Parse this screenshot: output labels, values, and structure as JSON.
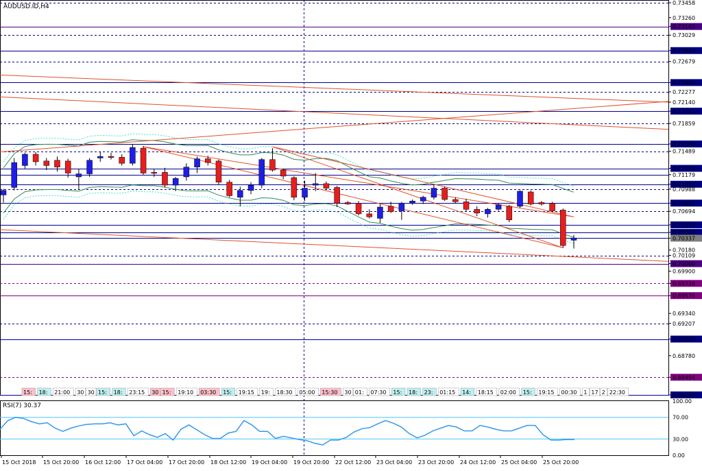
{
  "chart_data": {
    "type": "candlestick",
    "title": "AUDUSD.ID,H4",
    "ylim": [
      0.6826,
      0.73458
    ],
    "grid": false,
    "price_ticks": [
      "0.73458",
      "0.73260",
      "0.73143",
      "0.73029",
      "0.72824",
      "0.72679",
      "0.72400",
      "0.72277",
      "0.72140",
      "0.72021",
      "0.71859",
      "0.71586",
      "0.71489",
      "0.71263",
      "0.71179",
      "0.71052",
      "0.70988",
      "0.70802",
      "0.70694",
      "0.70514",
      "0.70414",
      "0.70337",
      "0.70180",
      "0.70109",
      "0.70000",
      "0.69900",
      "0.69738",
      "0.69576",
      "0.69340",
      "0.69207",
      "0.69000",
      "0.68780",
      "0.68494",
      "0.68260"
    ],
    "horizontal_levels": [
      {
        "price": 0.73458,
        "style": "dashed",
        "color": "#00008b"
      },
      {
        "price": 0.73143,
        "style": "solid",
        "color": "#4b0082"
      },
      {
        "price": 0.73029,
        "style": "dashed",
        "color": "#00008b"
      },
      {
        "price": 0.72824,
        "style": "solid",
        "color": "#00008b"
      },
      {
        "price": 0.72679,
        "style": "dashed",
        "color": "#00008b"
      },
      {
        "price": 0.724,
        "style": "solid",
        "color": "#00008b"
      },
      {
        "price": 0.72277,
        "style": "dashed",
        "color": "#00008b"
      },
      {
        "price": 0.72021,
        "style": "solid",
        "color": "#00008b"
      },
      {
        "price": 0.71859,
        "style": "dashed",
        "color": "#00008b"
      },
      {
        "price": 0.71586,
        "style": "solid",
        "color": "#00008b"
      },
      {
        "price": 0.71489,
        "style": "dashed",
        "color": "#00008b"
      },
      {
        "price": 0.71263,
        "style": "solid",
        "color": "#00008b"
      },
      {
        "price": 0.71179,
        "style": "solid",
        "color": "#00008b"
      },
      {
        "price": 0.71052,
        "style": "solid",
        "color": "#00008b"
      },
      {
        "price": 0.70988,
        "style": "dashed",
        "color": "#00008b"
      },
      {
        "price": 0.70802,
        "style": "solid",
        "color": "#00008b"
      },
      {
        "price": 0.70694,
        "style": "dashed",
        "color": "#00008b"
      },
      {
        "price": 0.70514,
        "style": "solid",
        "color": "#00008b"
      },
      {
        "price": 0.70414,
        "style": "solid",
        "color": "#00008b"
      },
      {
        "price": 0.70337,
        "style": "solid",
        "color": "#00008b"
      },
      {
        "price": 0.70109,
        "style": "dashed",
        "color": "#00008b"
      },
      {
        "price": 0.7,
        "style": "solid",
        "color": "#4b0082"
      },
      {
        "price": 0.69738,
        "style": "dashed",
        "color": "#800080"
      },
      {
        "price": 0.69576,
        "style": "solid",
        "color": "#800080"
      },
      {
        "price": 0.69207,
        "style": "dashed",
        "color": "#00008b"
      },
      {
        "price": 0.69,
        "style": "solid",
        "color": "#00008b"
      },
      {
        "price": 0.68494,
        "style": "dashed",
        "color": "#800080"
      },
      {
        "price": 0.6826,
        "style": "solid",
        "color": "#00008b"
      }
    ],
    "label_styles": {
      "0.73143": "#4b0082",
      "0.72824": "#000080",
      "0.72400": "#000080",
      "0.72021": "#000080",
      "0.71586": "#000080",
      "0.71263": "#000080",
      "0.71052": "#000080",
      "0.70802": "#000080",
      "0.70514": "#000080",
      "0.70414": "#000080",
      "0.70337": "#808080",
      "0.70000": "#4b0082",
      "0.69738": "#800080",
      "0.69576": "#800080",
      "0.69000": "#000080",
      "0.68494": "#800080",
      "0.68260": "#000080"
    },
    "candles": [
      {
        "o": 0.7091,
        "h": 0.7099,
        "l": 0.7081,
        "c": 0.7097
      },
      {
        "o": 0.7101,
        "h": 0.714,
        "l": 0.7097,
        "c": 0.7134
      },
      {
        "o": 0.713,
        "h": 0.7147,
        "l": 0.7126,
        "c": 0.7145
      },
      {
        "o": 0.7145,
        "h": 0.7148,
        "l": 0.713,
        "c": 0.7135
      },
      {
        "o": 0.7136,
        "h": 0.714,
        "l": 0.7124,
        "c": 0.713
      },
      {
        "o": 0.7137,
        "h": 0.7142,
        "l": 0.7122,
        "c": 0.7128
      },
      {
        "o": 0.7136,
        "h": 0.7139,
        "l": 0.7114,
        "c": 0.712
      },
      {
        "o": 0.7115,
        "h": 0.7126,
        "l": 0.7098,
        "c": 0.7119
      },
      {
        "o": 0.7119,
        "h": 0.714,
        "l": 0.7115,
        "c": 0.7137
      },
      {
        "o": 0.714,
        "h": 0.7148,
        "l": 0.7135,
        "c": 0.7142
      },
      {
        "o": 0.7142,
        "h": 0.7147,
        "l": 0.7138,
        "c": 0.7141
      },
      {
        "o": 0.7141,
        "h": 0.7145,
        "l": 0.713,
        "c": 0.7133
      },
      {
        "o": 0.7133,
        "h": 0.7158,
        "l": 0.713,
        "c": 0.7154
      },
      {
        "o": 0.7153,
        "h": 0.7156,
        "l": 0.7118,
        "c": 0.712
      },
      {
        "o": 0.7121,
        "h": 0.7125,
        "l": 0.7115,
        "c": 0.712
      },
      {
        "o": 0.7121,
        "h": 0.7127,
        "l": 0.7101,
        "c": 0.7104
      },
      {
        "o": 0.7104,
        "h": 0.7115,
        "l": 0.7096,
        "c": 0.7113
      },
      {
        "o": 0.7115,
        "h": 0.7133,
        "l": 0.711,
        "c": 0.7128
      },
      {
        "o": 0.7128,
        "h": 0.7142,
        "l": 0.712,
        "c": 0.7139
      },
      {
        "o": 0.7139,
        "h": 0.7143,
        "l": 0.713,
        "c": 0.7134
      },
      {
        "o": 0.7136,
        "h": 0.7138,
        "l": 0.7105,
        "c": 0.7108
      },
      {
        "o": 0.7108,
        "h": 0.7111,
        "l": 0.7088,
        "c": 0.709
      },
      {
        "o": 0.7088,
        "h": 0.7102,
        "l": 0.7076,
        "c": 0.7097
      },
      {
        "o": 0.7097,
        "h": 0.7108,
        "l": 0.7092,
        "c": 0.7104
      },
      {
        "o": 0.7104,
        "h": 0.714,
        "l": 0.71,
        "c": 0.7138
      },
      {
        "o": 0.7138,
        "h": 0.7153,
        "l": 0.7122,
        "c": 0.7124
      },
      {
        "o": 0.7124,
        "h": 0.7126,
        "l": 0.7112,
        "c": 0.7116
      },
      {
        "o": 0.7114,
        "h": 0.7116,
        "l": 0.7084,
        "c": 0.7088
      },
      {
        "o": 0.7088,
        "h": 0.711,
        "l": 0.7083,
        "c": 0.71
      },
      {
        "o": 0.7104,
        "h": 0.712,
        "l": 0.7096,
        "c": 0.7106
      },
      {
        "o": 0.7106,
        "h": 0.7109,
        "l": 0.7098,
        "c": 0.71
      },
      {
        "o": 0.7101,
        "h": 0.7103,
        "l": 0.7075,
        "c": 0.708
      },
      {
        "o": 0.7081,
        "h": 0.7083,
        "l": 0.7078,
        "c": 0.7079
      },
      {
        "o": 0.708,
        "h": 0.7083,
        "l": 0.7064,
        "c": 0.7066
      },
      {
        "o": 0.7066,
        "h": 0.7072,
        "l": 0.706,
        "c": 0.7062
      },
      {
        "o": 0.706,
        "h": 0.7079,
        "l": 0.7054,
        "c": 0.7075
      },
      {
        "o": 0.7076,
        "h": 0.7082,
        "l": 0.7067,
        "c": 0.7069
      },
      {
        "o": 0.707,
        "h": 0.7082,
        "l": 0.7058,
        "c": 0.708
      },
      {
        "o": 0.708,
        "h": 0.7085,
        "l": 0.7078,
        "c": 0.7083
      },
      {
        "o": 0.7083,
        "h": 0.709,
        "l": 0.7079,
        "c": 0.7088
      },
      {
        "o": 0.7088,
        "h": 0.7104,
        "l": 0.7085,
        "c": 0.71
      },
      {
        "o": 0.71,
        "h": 0.7102,
        "l": 0.7083,
        "c": 0.7085
      },
      {
        "o": 0.7085,
        "h": 0.7088,
        "l": 0.708,
        "c": 0.7082
      },
      {
        "o": 0.7082,
        "h": 0.7086,
        "l": 0.7069,
        "c": 0.7072
      },
      {
        "o": 0.7072,
        "h": 0.7076,
        "l": 0.7063,
        "c": 0.7067
      },
      {
        "o": 0.7066,
        "h": 0.7074,
        "l": 0.7061,
        "c": 0.7072
      },
      {
        "o": 0.7072,
        "h": 0.708,
        "l": 0.707,
        "c": 0.7078
      },
      {
        "o": 0.7076,
        "h": 0.7078,
        "l": 0.7055,
        "c": 0.7058
      },
      {
        "o": 0.7076,
        "h": 0.7097,
        "l": 0.7074,
        "c": 0.7096
      },
      {
        "o": 0.7095,
        "h": 0.7097,
        "l": 0.7077,
        "c": 0.7079
      },
      {
        "o": 0.7081,
        "h": 0.7083,
        "l": 0.7077,
        "c": 0.7079
      },
      {
        "o": 0.708,
        "h": 0.7082,
        "l": 0.7068,
        "c": 0.707
      },
      {
        "o": 0.7071,
        "h": 0.7073,
        "l": 0.7021,
        "c": 0.7024
      },
      {
        "o": 0.7031,
        "h": 0.7038,
        "l": 0.702,
        "c": 0.7034
      }
    ],
    "rsi": {
      "label": "RSI(7) 30.37",
      "ylim": [
        0,
        100
      ],
      "ticks": [
        "100.00",
        "70.00",
        "30.00",
        "0.00"
      ],
      "levels": [
        70,
        30
      ],
      "values": [
        48,
        64,
        70,
        68,
        62,
        58,
        60,
        50,
        44,
        50,
        54,
        57,
        58,
        58,
        60,
        56,
        58,
        36,
        45,
        38,
        33,
        40,
        28,
        48,
        56,
        47,
        38,
        31,
        31,
        41,
        44,
        64,
        56,
        44,
        44,
        31,
        35,
        32,
        29,
        27,
        22,
        19,
        28,
        28,
        33,
        43,
        49,
        51,
        58,
        64,
        59,
        52,
        40,
        32,
        37,
        45,
        50,
        55,
        52,
        45,
        45,
        55,
        52,
        48,
        45,
        45,
        50,
        55,
        55,
        38,
        28,
        28,
        29,
        29
      ]
    },
    "vertical_lines": [
      {
        "at": "19 Oct 20:00",
        "style": "dashed",
        "color": "#00008b"
      }
    ],
    "x_labels": [
      "15 Oct 2018",
      "15 Oct 20:00",
      "16 Oct 12:00",
      "17 Oct 04:00",
      "17 Oct 20:00",
      "18 Oct 12:00",
      "19 Oct 04:00",
      "19 Oct 20:00",
      "22 Oct 12:00",
      "23 Oct 04:00",
      "23 Oct 20:00",
      "24 Oct 12:00",
      "25 Oct 04:00",
      "25 Oct 20:00"
    ],
    "session_labels": [
      {
        "text": "15:",
        "bg": "#ffc0cb"
      },
      {
        "text": "18:",
        "bg": "#c0f0f0"
      },
      {
        "text": "21:00",
        "bg": "#ffffff"
      },
      {
        "text": "30",
        "bg": "#ffffff"
      },
      {
        "text": "30",
        "bg": "#ffffff"
      },
      {
        "text": "15:",
        "bg": "#c0f0f0"
      },
      {
        "text": "18:",
        "bg": "#c0f0f0"
      },
      {
        "text": "23:15",
        "bg": "#ffffff"
      },
      {
        "text": "30",
        "bg": "#ffc0cb"
      },
      {
        "text": "15:",
        "bg": "#ffc0cb"
      },
      {
        "text": "19:10",
        "bg": "#ffffff"
      },
      {
        "text": "03:30",
        "bg": "#ffc0cb"
      },
      {
        "text": "15:",
        "bg": "#c0f0f0"
      },
      {
        "text": "19:15",
        "bg": "#ffffff"
      },
      {
        "text": "19:",
        "bg": "#ffffff"
      },
      {
        "text": "18:30",
        "bg": "#ffffff"
      },
      {
        "text": "05:00",
        "bg": "#ffffff"
      },
      {
        "text": "15:30",
        "bg": "#ffc0cb"
      },
      {
        "text": "30",
        "bg": "#ffffff"
      },
      {
        "text": "01:",
        "bg": "#ffffff"
      },
      {
        "text": "07:30",
        "bg": "#ffffff"
      },
      {
        "text": "15:",
        "bg": "#c0f0f0"
      },
      {
        "text": "18:",
        "bg": "#c0f0f0"
      },
      {
        "text": "23:",
        "bg": "#c0f0f0"
      },
      {
        "text": "01:15",
        "bg": "#ffffff"
      },
      {
        "text": "14:",
        "bg": "#c0f0f0"
      },
      {
        "text": "18:15",
        "bg": "#ffffff"
      },
      {
        "text": "02:00",
        "bg": "#ffffff"
      },
      {
        "text": "15:",
        "bg": "#c0f0f0"
      },
      {
        "text": "19:15",
        "bg": "#ffffff"
      },
      {
        "text": "00:30",
        "bg": "#ffffff"
      },
      {
        "text": "1",
        "bg": "#ffffff"
      },
      {
        "text": "17",
        "bg": "#ffffff"
      },
      {
        "text": "2",
        "bg": "#ffffff"
      },
      {
        "text": "22:30",
        "bg": "#ffffff"
      }
    ],
    "colors": {
      "bull": "#1e1ee6",
      "bear": "#e61e1e",
      "wick": "#000000",
      "envelope": "#2e8b57",
      "envelope_outer": "#40e0d0",
      "trend": "#e0502a",
      "rsi_line": "#3399ee"
    }
  }
}
